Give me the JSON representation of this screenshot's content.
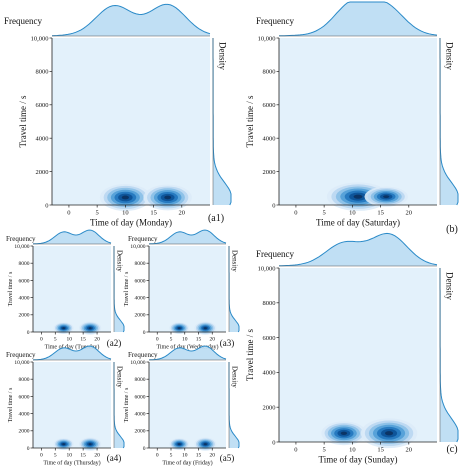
{
  "figure": {
    "panel_bg": "#e3f1fb",
    "kde_color": "#2a8ac8",
    "kde_fill": "#b9dcf3",
    "blob_colors": [
      "#dcebf8",
      "#b7d6f1",
      "#86bde6",
      "#4d9cd6",
      "#1f73bb",
      "#0b4f93",
      "#0a2f5c"
    ]
  },
  "chart_data": [
    {
      "id": "a1",
      "type": "heatmap",
      "title": "Frequency",
      "xlabel": "Time of day (Monday)",
      "ylabel": "Travel time / s",
      "side_label": "Density",
      "panel_label": "(a1)",
      "x_ticks": [
        "0",
        "5",
        "10",
        "15",
        "20"
      ],
      "y_ticks": [
        "0",
        "2000",
        "4000",
        "6000",
        "8000",
        "10,000"
      ],
      "xlim": [
        -3,
        25
      ],
      "ylim": [
        0,
        10000
      ],
      "density_centers": [
        {
          "x": 10,
          "y": 450,
          "w": 1.0
        },
        {
          "x": 17.5,
          "y": 450,
          "w": 0.95
        }
      ],
      "density_spread": {
        "x": 4.5,
        "y": 900
      },
      "freq_peaks": [
        {
          "x": 8,
          "h": 0.95
        },
        {
          "x": 17.5,
          "h": 1.0
        }
      ]
    },
    {
      "id": "b",
      "type": "heatmap",
      "title": "Frequency",
      "xlabel": "Time of day (Saturday)",
      "ylabel": "Travel time / s",
      "side_label": "Density",
      "panel_label": "(b)",
      "x_ticks": [
        "0",
        "5",
        "10",
        "15",
        "20"
      ],
      "y_ticks": [
        "0",
        "2000",
        "4000",
        "6000",
        "8000",
        "10,000"
      ],
      "xlim": [
        -3,
        25
      ],
      "ylim": [
        0,
        10000
      ],
      "density_centers": [
        {
          "x": 11,
          "y": 500,
          "w": 1.0
        },
        {
          "x": 16,
          "y": 500,
          "w": 0.7
        }
      ],
      "density_spread": {
        "x": 5.5,
        "y": 950
      },
      "freq_peaks": [
        {
          "x": 10,
          "h": 1.0
        },
        {
          "x": 16,
          "h": 0.9
        }
      ]
    },
    {
      "id": "a2",
      "type": "heatmap",
      "title": "Frequency",
      "xlabel": "Time of day (Tuesday)",
      "ylabel": "Travel time / s",
      "side_label": "Density",
      "panel_label": "(a2)",
      "x_ticks": [
        "0",
        "5",
        "10",
        "15",
        "20"
      ],
      "y_ticks": [
        "0",
        "2000",
        "4000",
        "6000",
        "8000",
        "10,000"
      ],
      "xlim": [
        -3,
        25
      ],
      "ylim": [
        0,
        10000
      ],
      "density_centers": [
        {
          "x": 8,
          "y": 450,
          "w": 0.9
        },
        {
          "x": 17.5,
          "y": 450,
          "w": 1.0
        }
      ],
      "density_spread": {
        "x": 4.0,
        "y": 850
      },
      "freq_peaks": [
        {
          "x": 8,
          "h": 0.85
        },
        {
          "x": 17.5,
          "h": 1.0
        }
      ]
    },
    {
      "id": "a3",
      "type": "heatmap",
      "title": "Frequency",
      "xlabel": "Time of day (Wednesday)",
      "ylabel": "Travel time / s",
      "side_label": "Density",
      "panel_label": "(a3)",
      "x_ticks": [
        "0",
        "5",
        "10",
        "15",
        "20"
      ],
      "y_ticks": [
        "0",
        "2000",
        "4000",
        "6000",
        "8000",
        "10,000"
      ],
      "xlim": [
        -3,
        25
      ],
      "ylim": [
        0,
        10000
      ],
      "density_centers": [
        {
          "x": 8,
          "y": 450,
          "w": 0.9
        },
        {
          "x": 17.5,
          "y": 450,
          "w": 1.0
        }
      ],
      "density_spread": {
        "x": 4.0,
        "y": 850
      },
      "freq_peaks": [
        {
          "x": 8,
          "h": 0.85
        },
        {
          "x": 17.5,
          "h": 1.0
        }
      ]
    },
    {
      "id": "a4",
      "type": "heatmap",
      "title": "Frequency",
      "xlabel": "Time of day (Thursday)",
      "ylabel": "Travel time / s",
      "side_label": "Density",
      "panel_label": "(a4)",
      "x_ticks": [
        "0",
        "5",
        "10",
        "15",
        "20"
      ],
      "y_ticks": [
        "0",
        "2000",
        "4000",
        "6000",
        "8000",
        "10,000"
      ],
      "xlim": [
        -3,
        25
      ],
      "ylim": [
        0,
        10000
      ],
      "density_centers": [
        {
          "x": 8,
          "y": 450,
          "w": 0.9
        },
        {
          "x": 17.5,
          "y": 450,
          "w": 1.0
        }
      ],
      "density_spread": {
        "x": 4.0,
        "y": 850
      },
      "freq_peaks": [
        {
          "x": 8,
          "h": 0.85
        },
        {
          "x": 17.5,
          "h": 1.0
        }
      ]
    },
    {
      "id": "a5",
      "type": "heatmap",
      "title": "Frequency",
      "xlabel": "Time of day (Friday)",
      "ylabel": "Travel time / s",
      "side_label": "Density",
      "panel_label": "(a5)",
      "x_ticks": [
        "0",
        "5",
        "10",
        "15",
        "20"
      ],
      "y_ticks": [
        "0",
        "2000",
        "4000",
        "6000",
        "8000",
        "10,000"
      ],
      "xlim": [
        -3,
        25
      ],
      "ylim": [
        0,
        10000
      ],
      "density_centers": [
        {
          "x": 8,
          "y": 450,
          "w": 0.9
        },
        {
          "x": 17.5,
          "y": 450,
          "w": 1.0
        }
      ],
      "density_spread": {
        "x": 4.0,
        "y": 850
      },
      "freq_peaks": [
        {
          "x": 8,
          "h": 0.85
        },
        {
          "x": 17.5,
          "h": 1.0
        }
      ]
    },
    {
      "id": "c",
      "type": "heatmap",
      "title": "Frequency",
      "xlabel": "Time of day (Sunday)",
      "ylabel": "Travel time / s",
      "side_label": "Density",
      "panel_label": "(c)",
      "x_ticks": [
        "0",
        "5",
        "10",
        "15",
        "20"
      ],
      "y_ticks": [
        "0",
        "2000",
        "4000",
        "6000",
        "8000",
        "10,000"
      ],
      "xlim": [
        -3,
        25
      ],
      "ylim": [
        0,
        10000
      ],
      "density_centers": [
        {
          "x": 8.5,
          "y": 500,
          "w": 0.8
        },
        {
          "x": 16.5,
          "y": 500,
          "w": 1.0
        }
      ],
      "density_spread": {
        "x": 5.0,
        "y": 950
      },
      "freq_peaks": [
        {
          "x": 8.5,
          "h": 0.7
        },
        {
          "x": 16.5,
          "h": 1.0
        }
      ]
    }
  ]
}
